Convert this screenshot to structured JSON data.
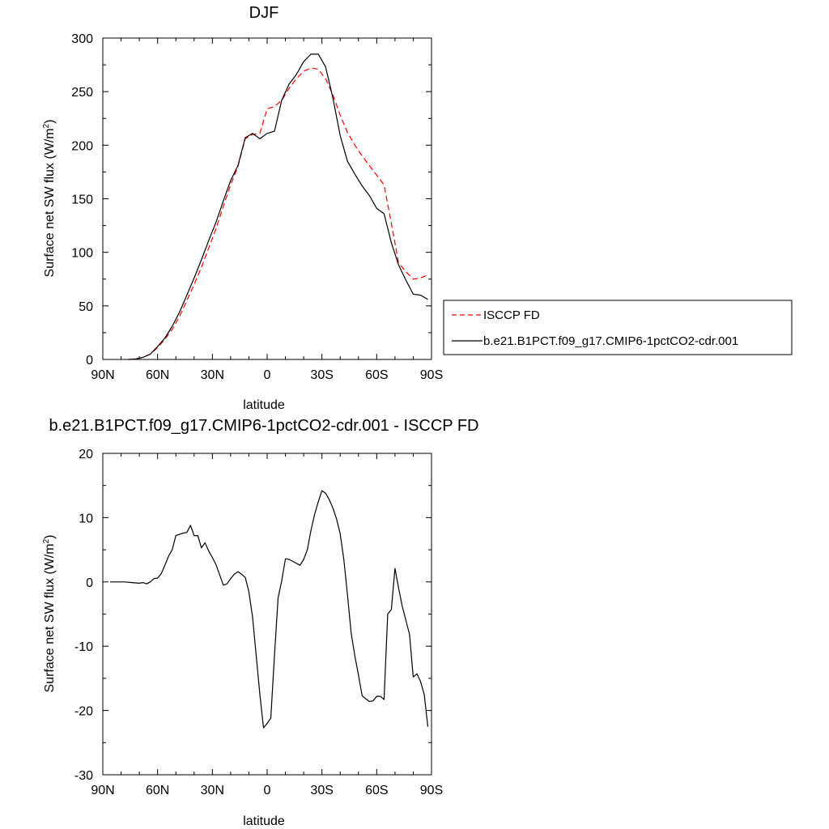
{
  "chart_data": [
    {
      "type": "line",
      "title": "DJF",
      "xlabel": "latitude",
      "ylabel": "Surface net SW flux (W/m",
      "ylabel_sup": "2",
      "ylabel_close": ")",
      "x_ticks": [
        90,
        60,
        30,
        0,
        -30,
        -60,
        -90
      ],
      "x_tick_labels": [
        "90N",
        "60N",
        "30N",
        "0",
        "30S",
        "60S",
        "90S"
      ],
      "y_ticks": [
        0,
        50,
        100,
        150,
        200,
        250,
        300
      ],
      "y_tick_labels": [
        "0",
        "50",
        "100",
        "150",
        "200",
        "250",
        "300"
      ],
      "xlim": [
        90,
        -90
      ],
      "ylim": [
        0,
        300
      ],
      "legend": "right",
      "series": [
        {
          "name": "ISCCP FD",
          "color": "#ff0000",
          "dash": "dashed",
          "x": [
            76,
            72,
            68,
            64,
            60,
            56,
            52,
            48,
            44,
            40,
            36,
            32,
            28,
            24,
            20,
            16,
            12,
            8,
            4,
            0,
            -4,
            -8,
            -12,
            -16,
            -20,
            -24,
            -28,
            -32,
            -36,
            -40,
            -44,
            -48,
            -52,
            -56,
            -60,
            -64,
            -68,
            -72,
            -76,
            -80,
            -84,
            -88
          ],
          "y": [
            0,
            0.5,
            2,
            5,
            11,
            19,
            28,
            40,
            55,
            70,
            86,
            104,
            122,
            143,
            163,
            180,
            206,
            210,
            211,
            234,
            236,
            242,
            253,
            262,
            269,
            272,
            271,
            262,
            247,
            228,
            212,
            200,
            190,
            181,
            172,
            163,
            127,
            90,
            82,
            75,
            76,
            79
          ]
        },
        {
          "name": "b.e21.B1PCT.f09_g17.CMIP6-1pctCO2-cdr.001",
          "color": "#000000",
          "dash": "solid",
          "x": [
            76,
            72,
            68,
            64,
            60,
            56,
            52,
            48,
            44,
            40,
            36,
            32,
            28,
            24,
            20,
            16,
            12,
            8,
            4,
            0,
            -4,
            -8,
            -12,
            -16,
            -20,
            -24,
            -28,
            -32,
            -36,
            -40,
            -44,
            -48,
            -52,
            -56,
            -60,
            -64,
            -68,
            -72,
            -76,
            -80,
            -84,
            -88
          ],
          "y": [
            0,
            0.5,
            2,
            5,
            12,
            20,
            31,
            44,
            60,
            76,
            93,
            111,
            128,
            148,
            167,
            181,
            207,
            211,
            206,
            211,
            213,
            242,
            257,
            266,
            278,
            285,
            285,
            273,
            244,
            209,
            185,
            173,
            162,
            153,
            141,
            136,
            109,
            88,
            74,
            61,
            60,
            56
          ]
        }
      ]
    },
    {
      "type": "line",
      "title": "b.e21.B1PCT.f09_g17.CMIP6-1pctCO2-cdr.001 - ISCCP FD",
      "xlabel": "latitude",
      "ylabel": "Surface net SW flux (W/m",
      "ylabel_sup": "2",
      "ylabel_close": ")",
      "x_ticks": [
        90,
        60,
        30,
        0,
        -30,
        -60,
        -90
      ],
      "x_tick_labels": [
        "90N",
        "60N",
        "30N",
        "0",
        "30S",
        "60S",
        "90S"
      ],
      "y_ticks": [
        -30,
        -20,
        -10,
        0,
        10,
        20
      ],
      "y_tick_labels": [
        "-30",
        "-20",
        "-10",
        "0",
        "10",
        "20"
      ],
      "xlim": [
        90,
        -90
      ],
      "ylim": [
        -30,
        20
      ],
      "series": [
        {
          "color": "#000000",
          "dash": "solid",
          "x": [
            86,
            82,
            78,
            74,
            70,
            68,
            66,
            64,
            62,
            60,
            58,
            56,
            54,
            52,
            50,
            46,
            44,
            42,
            40,
            38,
            36,
            34,
            32,
            30,
            28,
            24,
            22,
            20,
            18,
            16,
            14,
            12,
            10,
            8,
            6,
            4,
            2,
            0,
            -2,
            -4,
            -6,
            -8,
            -10,
            -12,
            -14,
            -18,
            -20,
            -22,
            -24,
            -26,
            -28,
            -30,
            -32,
            -34,
            -36,
            -38,
            -40,
            -42,
            -44,
            -46,
            -48,
            -50,
            -52,
            -54,
            -56,
            -58,
            -60,
            -62,
            -64,
            -66,
            -68,
            -70,
            -72,
            -74,
            -76,
            -78,
            -80,
            -82,
            -84,
            -86,
            -88
          ],
          "y": [
            0,
            0,
            0,
            -0.1,
            -0.2,
            -0.1,
            -0.3,
            0,
            0.5,
            0.6,
            1.3,
            2.6,
            4,
            5,
            7.2,
            7.6,
            7.7,
            8.8,
            7.2,
            7.2,
            5.3,
            6.1,
            4.8,
            3.8,
            2.7,
            -0.5,
            -0.3,
            0.5,
            1.2,
            1.6,
            1.2,
            0.7,
            -1.5,
            -5.5,
            -11.5,
            -17.5,
            -22.7,
            -22,
            -21.2,
            -11.5,
            -2.5,
            0.2,
            3.6,
            3.5,
            3.2,
            2.6,
            3.5,
            5,
            8,
            10.5,
            12.5,
            14.2,
            13.8,
            12.8,
            11.5,
            9.8,
            7.5,
            3.5,
            -2,
            -8,
            -11.5,
            -14.5,
            -17.7,
            -18.2,
            -18.6,
            -18.5,
            -17.8,
            -17.8,
            -18.3,
            -5,
            -4.3,
            2.1,
            -1,
            -3.8,
            -6,
            -8.2,
            -14.8,
            -14.3,
            -15.5,
            -17.5,
            -22.5
          ]
        }
      ]
    }
  ]
}
